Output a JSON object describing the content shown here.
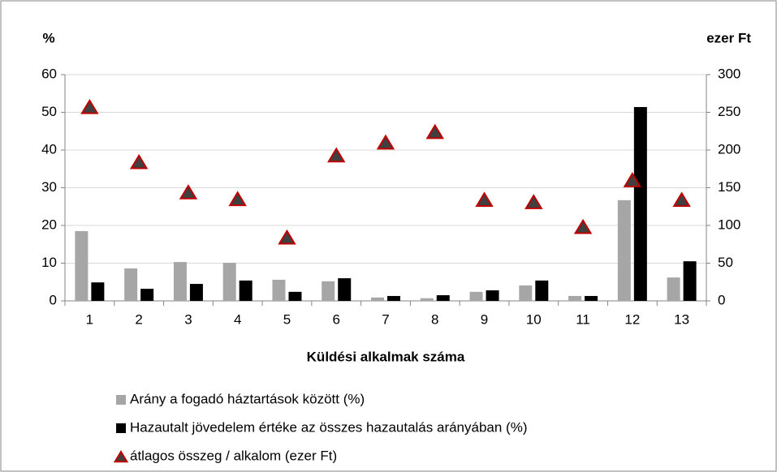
{
  "chart_data": {
    "type": "bar",
    "y_label": "%",
    "y2_label": "ezer Ft",
    "x_label": "Küldési alkalmak száma",
    "categories": [
      "1",
      "2",
      "3",
      "4",
      "5",
      "6",
      "7",
      "8",
      "9",
      "10",
      "11",
      "12",
      "13"
    ],
    "series": [
      {
        "name": "Arány a fogadó háztartások között (%)",
        "type": "bar",
        "color": "#a6a6a6",
        "values": [
          18.5,
          8.6,
          10.3,
          10.1,
          5.6,
          5.2,
          0.9,
          0.7,
          2.4,
          4.1,
          1.3,
          26.7,
          6.2
        ]
      },
      {
        "name": "Hazautalt jövedelem értéke az összes hazautalás arányában (%)",
        "type": "bar",
        "color": "#000000",
        "values": [
          4.9,
          3.2,
          4.5,
          5.4,
          2.4,
          6.0,
          1.3,
          1.5,
          2.8,
          5.4,
          1.3,
          51.4,
          10.5
        ]
      },
      {
        "name": "átlagos összeg / alkalom (ezer Ft)",
        "type": "scatter",
        "marker": "triangle",
        "color": "#404040",
        "edge_color": "#c00000",
        "axis": "y2",
        "values": [
          256,
          183,
          143,
          134,
          83,
          192,
          209,
          223,
          133,
          130,
          97,
          159,
          133
        ]
      }
    ],
    "ylim": [
      0,
      60
    ],
    "yticks": [
      0,
      10,
      20,
      30,
      40,
      50,
      60
    ],
    "y2lim": [
      0,
      300
    ],
    "y2ticks": [
      0,
      50,
      100,
      150,
      200,
      250,
      300
    ],
    "grid": true,
    "legend": "bottom"
  }
}
